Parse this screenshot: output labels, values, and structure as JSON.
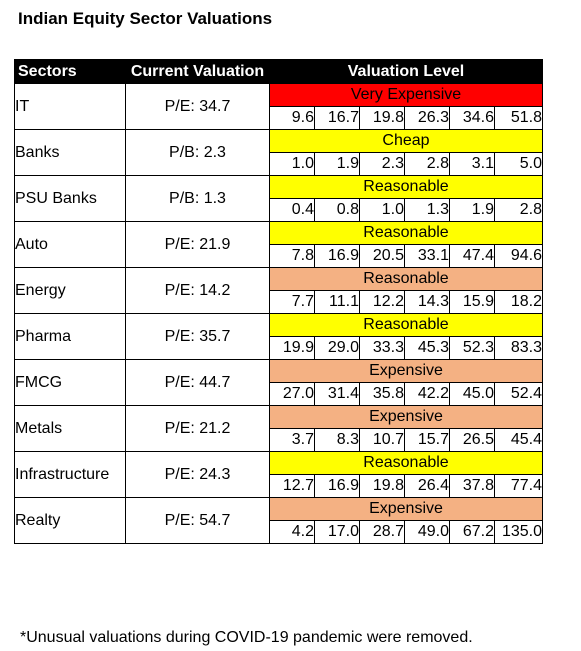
{
  "title": "Indian Equity Sector Valuations",
  "footnote": "*Unusual valuations during COVID-19 pandemic were removed.",
  "colors": {
    "Very Expensive": "#ff0000",
    "Expensive": "#f4b183",
    "Cheap": "#ffff00",
    "Reasonable_yellow": "#ffff00",
    "Reasonable_peach": "#f4b183"
  },
  "chart_data": {
    "type": "table",
    "title": "Indian Equity Sector Valuations",
    "columns": [
      "Sectors",
      "Current Valuation",
      "Valuation Level"
    ],
    "rows": [
      {
        "sector": "IT",
        "current": "P/E: 34.7",
        "level": "Very Expensive",
        "color": "#ff0000",
        "values": [
          "9.6",
          "16.7",
          "19.8",
          "26.3",
          "34.6",
          "51.8"
        ]
      },
      {
        "sector": "Banks",
        "current": "P/B: 2.3",
        "level": "Cheap",
        "color": "#ffff00",
        "values": [
          "1.0",
          "1.9",
          "2.3",
          "2.8",
          "3.1",
          "5.0"
        ]
      },
      {
        "sector": "PSU Banks",
        "current": "P/B: 1.3",
        "level": "Reasonable",
        "color": "#ffff00",
        "values": [
          "0.4",
          "0.8",
          "1.0",
          "1.3",
          "1.9",
          "2.8"
        ]
      },
      {
        "sector": "Auto",
        "current": "P/E: 21.9",
        "level": "Reasonable",
        "color": "#ffff00",
        "values": [
          "7.8",
          "16.9",
          "20.5",
          "33.1",
          "47.4",
          "94.6"
        ]
      },
      {
        "sector": "Energy",
        "current": "P/E: 14.2",
        "level": "Reasonable",
        "color": "#f4b183",
        "values": [
          "7.7",
          "11.1",
          "12.2",
          "14.3",
          "15.9",
          "18.2"
        ]
      },
      {
        "sector": "Pharma",
        "current": "P/E: 35.7",
        "level": "Reasonable",
        "color": "#ffff00",
        "values": [
          "19.9",
          "29.0",
          "33.3",
          "45.3",
          "52.3",
          "83.3"
        ]
      },
      {
        "sector": "FMCG",
        "current": "P/E: 44.7",
        "level": "Expensive",
        "color": "#f4b183",
        "values": [
          "27.0",
          "31.4",
          "35.8",
          "42.2",
          "45.0",
          "52.4"
        ]
      },
      {
        "sector": "Metals",
        "current": "P/E: 21.2",
        "level": "Expensive",
        "color": "#f4b183",
        "values": [
          "3.7",
          "8.3",
          "10.7",
          "15.7",
          "26.5",
          "45.4"
        ]
      },
      {
        "sector": "Infrastructure",
        "current": "P/E: 24.3",
        "level": "Reasonable",
        "color": "#ffff00",
        "values": [
          "12.7",
          "16.9",
          "19.8",
          "26.4",
          "37.8",
          "77.4"
        ]
      },
      {
        "sector": "Realty",
        "current": "P/E: 54.7",
        "level": "Expensive",
        "color": "#f4b183",
        "values": [
          "4.2",
          "17.0",
          "28.7",
          "49.0",
          "67.2",
          "135.0"
        ]
      }
    ]
  }
}
